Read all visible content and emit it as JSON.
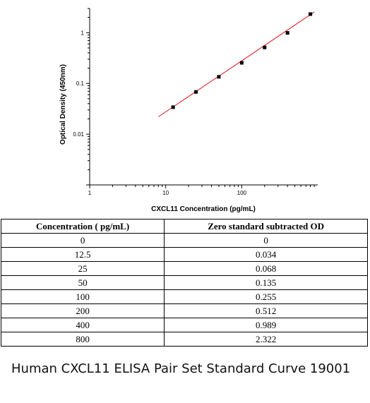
{
  "chart_data": {
    "type": "scatter",
    "title": "",
    "xlabel": "CXCL11 Concentration (pg/mL)",
    "ylabel": "Optical Density (450nm)",
    "x_scale": "log",
    "y_scale": "log",
    "xlim": [
      1,
      1000
    ],
    "ylim": [
      0.001,
      3
    ],
    "x_ticks": [
      1,
      10,
      100
    ],
    "x_tick_labels": [
      "1",
      "10",
      "100"
    ],
    "y_ticks": [
      0.01,
      0.1,
      1
    ],
    "y_tick_labels": [
      "0.01",
      "0.1",
      "1"
    ],
    "points": [
      {
        "x": 12.5,
        "y": 0.034
      },
      {
        "x": 25,
        "y": 0.068
      },
      {
        "x": 50,
        "y": 0.135
      },
      {
        "x": 100,
        "y": 0.255
      },
      {
        "x": 200,
        "y": 0.512
      },
      {
        "x": 400,
        "y": 0.989
      },
      {
        "x": 800,
        "y": 2.322
      }
    ],
    "fit_line": {
      "x": [
        8,
        900
      ],
      "y": [
        0.022,
        2.55
      ],
      "color": "#e0101a"
    },
    "marker_color": "#000000",
    "grid": false,
    "legend": "none"
  },
  "table": {
    "headers": [
      "Concentration ( pg/mL)",
      "Zero standard subtracted OD"
    ],
    "rows": [
      [
        "0",
        "0"
      ],
      [
        "12.5",
        "0.034"
      ],
      [
        "25",
        "0.068"
      ],
      [
        "50",
        "0.135"
      ],
      [
        "100",
        "0.255"
      ],
      [
        "200",
        "0.512"
      ],
      [
        "400",
        "0.989"
      ],
      [
        "800",
        "2.322"
      ]
    ]
  },
  "caption": "Human CXCL11 ELISA Pair Set Standard Curve 19001"
}
